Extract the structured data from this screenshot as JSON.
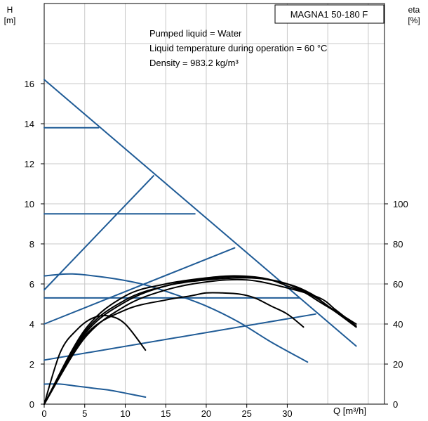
{
  "chart_data": {
    "type": "line",
    "title": "MAGNA1 50-180 F",
    "ylabel_left_name": "H",
    "ylabel_left_unit": "[m]",
    "ylabel_right_name": "eta",
    "ylabel_right_unit": "[%]",
    "xlabel": "Q [m³/h]",
    "annotations": [
      "Pumped liquid = Water",
      "Liquid temperature during operation = 60 °C",
      "Density = 983.2 kg/m³"
    ],
    "xlim": [
      0,
      42
    ],
    "ylim_left": [
      0,
      20
    ],
    "ylim_right": [
      0,
      200
    ],
    "x_ticks": [
      0,
      5,
      10,
      15,
      20,
      25,
      30
    ],
    "y_ticks_left": [
      0,
      2,
      4,
      6,
      8,
      10,
      12,
      14,
      16
    ],
    "y_ticks_right": [
      0,
      20,
      40,
      60,
      80,
      100
    ],
    "grid": true,
    "colors": {
      "head": "#1f5b96",
      "efficiency": "#000000",
      "grid": "#c8c8c8"
    },
    "series": [
      {
        "axis": "left",
        "color": "#1f5b96",
        "x": [
          0,
          38.5
        ],
        "y": [
          16.2,
          2.9
        ]
      },
      {
        "axis": "left",
        "color": "#1f5b96",
        "x": [
          0,
          6.7
        ],
        "y": [
          13.8,
          13.8
        ]
      },
      {
        "axis": "left",
        "color": "#1f5b96",
        "x": [
          0,
          18.6
        ],
        "y": [
          9.5,
          9.5
        ]
      },
      {
        "axis": "left",
        "color": "#1f5b96",
        "x": [
          0,
          31.5
        ],
        "y": [
          5.3,
          5.3
        ]
      },
      {
        "axis": "left",
        "color": "#1f5b96",
        "x": [
          0,
          13.5
        ],
        "y": [
          5.7,
          11.4
        ]
      },
      {
        "axis": "left",
        "color": "#1f5b96",
        "x": [
          0,
          23.5
        ],
        "y": [
          4.0,
          7.8
        ]
      },
      {
        "axis": "left",
        "color": "#1f5b96",
        "x": [
          0,
          33.5
        ],
        "y": [
          2.2,
          4.5
        ]
      },
      {
        "axis": "left",
        "color": "#1f5b96",
        "x": [
          0,
          3.5,
          8,
          12,
          16,
          20,
          24,
          28,
          32.5
        ],
        "y": [
          6.4,
          6.5,
          6.3,
          6.0,
          5.5,
          4.9,
          4.1,
          3.1,
          2.1
        ]
      },
      {
        "axis": "left",
        "color": "#1f5b96",
        "x": [
          0,
          2,
          4,
          6,
          8,
          10,
          12.5
        ],
        "y": [
          1.0,
          1.0,
          0.9,
          0.8,
          0.7,
          0.55,
          0.35
        ]
      },
      {
        "axis": "right",
        "color": "#000000",
        "x": [
          0,
          2,
          4,
          6,
          8,
          10,
          12.5
        ],
        "y": [
          0,
          26,
          37,
          43,
          44,
          40,
          27
        ]
      },
      {
        "axis": "right",
        "color": "#000000",
        "x": [
          0,
          5,
          10,
          15,
          18,
          20,
          22,
          24,
          26,
          28,
          30,
          32
        ],
        "y": [
          0,
          34,
          47,
          52,
          54,
          55.5,
          55.5,
          55,
          53,
          49,
          45,
          38.5
        ]
      },
      {
        "axis": "right",
        "color": "#000000",
        "x": [
          0,
          5,
          10,
          15,
          20,
          25,
          28,
          30,
          32,
          34,
          36,
          38.5
        ],
        "y": [
          0,
          36,
          52,
          59,
          62,
          63,
          62,
          60,
          56.5,
          52,
          46,
          38.5
        ]
      },
      {
        "axis": "right",
        "color": "#000000",
        "x": [
          0,
          5,
          10,
          15,
          20,
          23,
          26,
          28,
          30,
          32,
          34,
          36,
          38.5
        ],
        "y": [
          0,
          37,
          54,
          60,
          63,
          64,
          63.5,
          62,
          59,
          56,
          51,
          46,
          38.5
        ]
      },
      {
        "axis": "right",
        "color": "#000000",
        "x": [
          0,
          5,
          10,
          15,
          20,
          25,
          30,
          34,
          36,
          38.5
        ],
        "y": [
          0,
          33,
          49,
          57,
          61,
          62,
          58,
          53,
          47,
          39
        ]
      },
      {
        "axis": "right",
        "color": "#000000",
        "x": [
          0,
          5,
          10,
          15,
          20,
          25,
          30,
          33,
          35,
          38.5
        ],
        "y": [
          0,
          35,
          51,
          59,
          62.5,
          63.5,
          60,
          55,
          49,
          40
        ]
      }
    ]
  }
}
